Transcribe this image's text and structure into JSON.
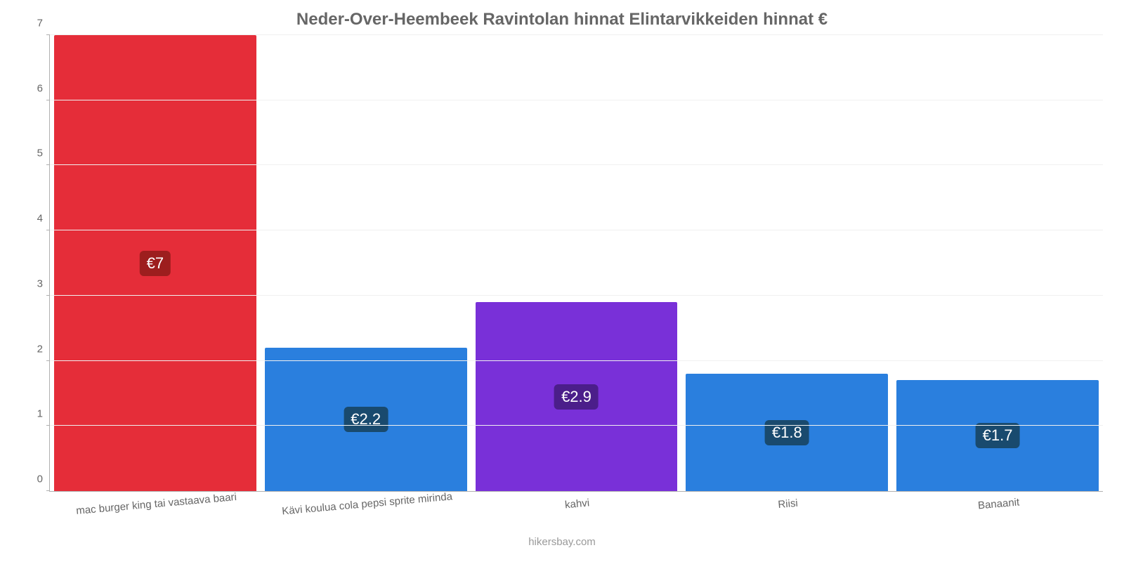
{
  "chart": {
    "type": "bar",
    "title": "Neder-Over-Heembeek Ravintolan hinnat Elintarvikkeiden hinnat €",
    "title_fontsize": 24,
    "title_color": "#666666",
    "attribution": "hikersbay.com",
    "attribution_color": "#999999",
    "background_color": "#ffffff",
    "grid_color": "#f0f0f0",
    "axis_color": "#b0b0b0",
    "tick_label_color": "#666666",
    "tick_fontsize": 15,
    "value_label_fontsize": 22,
    "value_label_color": "#ffffff",
    "value_badge_radius": 6,
    "x_label_rotation_deg": -5,
    "ylim": [
      0,
      7
    ],
    "ytick_step": 1,
    "bar_width": 0.96,
    "categories": [
      "mac burger king tai vastaava baari",
      "Kävi koulua cola pepsi sprite mirinda",
      "kahvi",
      "Riisi",
      "Banaanit"
    ],
    "values": [
      7,
      2.2,
      2.9,
      1.8,
      1.7
    ],
    "value_labels": [
      "€7",
      "€2.2",
      "€2.9",
      "€1.8",
      "€1.7"
    ],
    "bar_colors": [
      "#e52d39",
      "#2a7fde",
      "#7930d8",
      "#2a7fde",
      "#2a7fde"
    ],
    "badge_colors": [
      "#9d1e1e",
      "#194a6e",
      "#4b1e8a",
      "#194a6e",
      "#194a6e"
    ]
  }
}
